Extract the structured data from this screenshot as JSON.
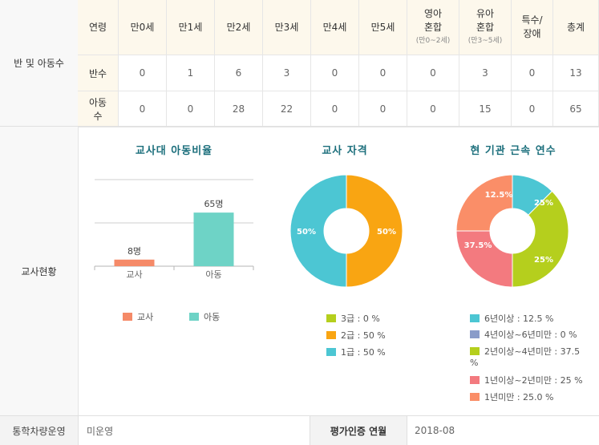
{
  "section_labels": {
    "class_children": "반 및 아동수",
    "teachers": "교사현황"
  },
  "class_table": {
    "header": {
      "age_label": "연령",
      "ages": [
        "만0세",
        "만1세",
        "만2세",
        "만3세",
        "만4세",
        "만5세"
      ],
      "infant_mixed": {
        "label_line1": "영아",
        "label_line2": "혼합",
        "sub": "(만0~2세)"
      },
      "toddler_mixed": {
        "label_line1": "유아",
        "label_line2": "혼합",
        "sub": "(만3~5세)"
      },
      "special_line1": "특수/",
      "special_line2": "장애",
      "total": "총계"
    },
    "rows": [
      {
        "label": "반수",
        "values": [
          "0",
          "1",
          "6",
          "3",
          "0",
          "0",
          "0",
          "3",
          "0",
          "13"
        ]
      },
      {
        "label_line1": "아동",
        "label_line2": "수",
        "values": [
          "0",
          "0",
          "28",
          "22",
          "0",
          "0",
          "0",
          "15",
          "0",
          "65"
        ]
      }
    ]
  },
  "chart_data": [
    {
      "type": "bar",
      "title": "교사대 아동비율",
      "categories": [
        "교사",
        "아동"
      ],
      "values": [
        8,
        65
      ],
      "data_labels": [
        "8명",
        "65명"
      ],
      "colors": [
        "#f58a68",
        "#6ed3c6"
      ],
      "ylim": [
        0,
        105
      ],
      "grid": true,
      "legend": [
        {
          "label": "교사",
          "color": "#f58a68"
        },
        {
          "label": "아동",
          "color": "#6ed3c6"
        }
      ],
      "legend_position": "bottom"
    },
    {
      "type": "pie",
      "title": "교사 자격",
      "donut": true,
      "slices": [
        {
          "label": "3급",
          "value": 0,
          "color": "#b5cf1d"
        },
        {
          "label": "2급",
          "value": 50,
          "color": "#f9a512"
        },
        {
          "label": "1급",
          "value": 50,
          "color": "#4cc6d3"
        }
      ],
      "slice_labels": {
        "left": "50%",
        "right": "50%"
      },
      "legend": [
        {
          "text": "3급 : 0 %",
          "color": "#b5cf1d"
        },
        {
          "text": "2급 : 50 %",
          "color": "#f9a512"
        },
        {
          "text": "1급 : 50 %",
          "color": "#4cc6d3"
        }
      ],
      "legend_position": "bottom"
    },
    {
      "type": "pie",
      "title": "현 기관 근속 연수",
      "donut": true,
      "slices": [
        {
          "label": "6년이상",
          "value": 12.5,
          "color": "#4cc6d3"
        },
        {
          "label": "4년이상~6년미만",
          "value": 0,
          "color": "#8a9cc9"
        },
        {
          "label": "2년이상~4년미만",
          "value": 37.5,
          "color": "#b5cf1d"
        },
        {
          "label": "1년이상~2년미만",
          "value": 25,
          "color": "#f37a7f"
        },
        {
          "label": "1년미만",
          "value": 25.0,
          "color": "#fa8e68"
        }
      ],
      "slice_labels": {
        "six_plus": "12.5%",
        "two_four": "37.5%",
        "one_two": "25%",
        "under_one": "25%"
      },
      "legend": [
        {
          "text": "6년이상 : 12.5 %",
          "color": "#4cc6d3"
        },
        {
          "text": "4년이상~6년미만 : 0 %",
          "color": "#8a9cc9"
        },
        {
          "text": "2년이상~4년미만 : 37.5",
          "text_cont": "%",
          "color": "#b5cf1d"
        },
        {
          "text": "1년이상~2년미만 : 25 %",
          "color": "#f37a7f"
        },
        {
          "text": "1년미만 : 25.0 %",
          "color": "#fa8e68"
        }
      ],
      "legend_position": "bottom"
    }
  ],
  "footer": {
    "bus_label": "통학차량운영",
    "bus_value": "미운영",
    "eval_label": "평가인증 연월",
    "eval_value": "2018-08"
  }
}
